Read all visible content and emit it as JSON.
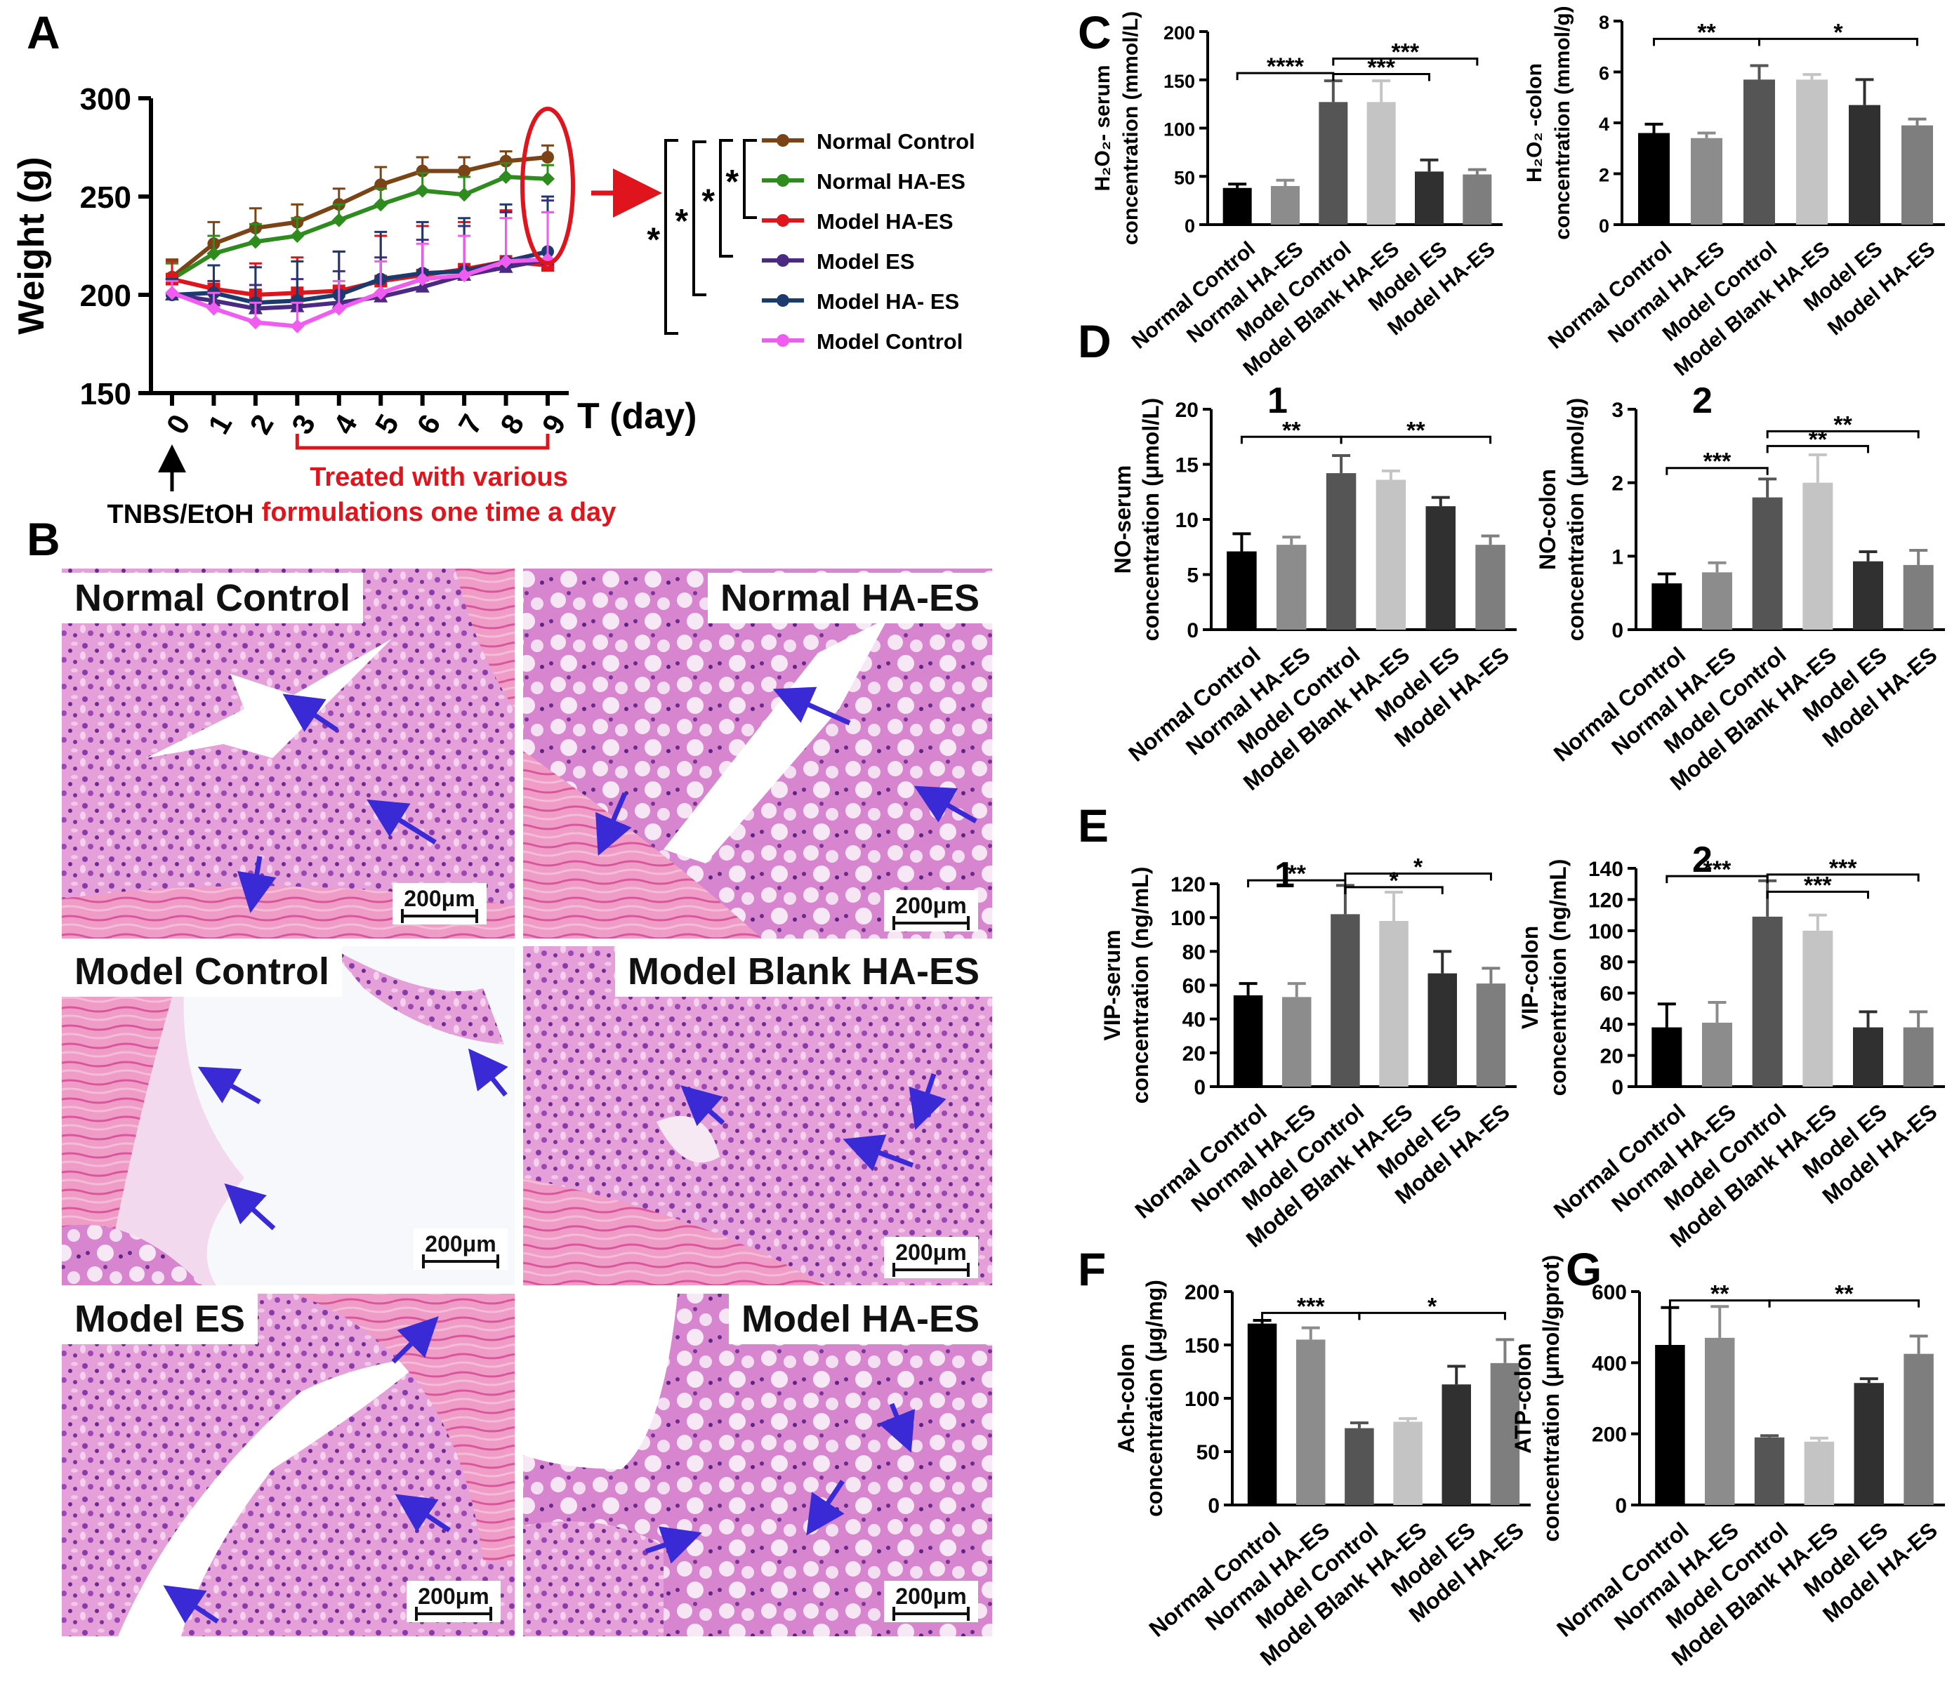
{
  "colors": {
    "normal_control": "#7a4416",
    "normal_haes": "#2e8b1e",
    "model_haes": "#e0141c",
    "model_es": "#4b2a84",
    "model_ha_es": "#1b3a6e",
    "model_control": "#f05cf0",
    "bars": [
      "#000000",
      "#8c8c8c",
      "#555555",
      "#c4c4c4",
      "#303030",
      "#7e7e7e"
    ],
    "arrow_red": "#e0141c",
    "arrow_blue": "#3a2ad6"
  },
  "panel_letters": [
    "A",
    "B",
    "C",
    "D",
    "E",
    "F",
    "G"
  ],
  "panelA": {
    "ylabel": "Weight (g)",
    "xlabel": "T (day)",
    "ylim": [
      150,
      300
    ],
    "yticks": [
      150,
      200,
      250,
      300
    ],
    "xticks": [
      0,
      1,
      2,
      3,
      4,
      5,
      6,
      7,
      8,
      9
    ],
    "annotation_treatment": "Treated with various\nformulations one time a day",
    "annotation_induction": "TNBS/EtOH",
    "sig_star": "*"
  },
  "chart_data": [
    {
      "id": "A",
      "type": "line",
      "title": "",
      "xlabel": "T (day)",
      "ylabel": "Weight (g)",
      "x": [
        0,
        1,
        2,
        3,
        4,
        5,
        6,
        7,
        8,
        9
      ],
      "ylim": [
        150,
        300
      ],
      "series": [
        {
          "name": "Normal Control",
          "values": [
            209,
            226,
            234,
            237,
            246,
            256,
            263,
            263,
            268,
            270
          ]
        },
        {
          "name": "Normal HA-ES",
          "values": [
            208,
            221,
            227,
            230,
            238,
            246,
            253,
            251,
            260,
            259
          ]
        },
        {
          "name": "Model HA-ES",
          "values": [
            208,
            203,
            200,
            201,
            202,
            207,
            210,
            213,
            217,
            215
          ]
        },
        {
          "name": "Model ES",
          "values": [
            200,
            197,
            193,
            194,
            196,
            199,
            204,
            210,
            214,
            218
          ]
        },
        {
          "name": "Model HA- ES",
          "values": [
            200,
            201,
            196,
            197,
            200,
            208,
            211,
            212,
            217,
            222
          ]
        },
        {
          "name": "Model Control",
          "values": [
            201,
            193,
            186,
            184,
            193,
            201,
            208,
            210,
            217,
            218
          ]
        }
      ],
      "errors": [
        [
          9,
          11,
          10,
          9,
          8,
          9,
          7,
          7,
          5,
          6
        ],
        [
          8,
          9,
          9,
          9,
          8,
          8,
          9,
          9,
          7,
          7
        ],
        [
          9,
          12,
          16,
          18,
          20,
          23,
          25,
          24,
          26,
          27
        ],
        [
          8,
          10,
          12,
          14,
          16,
          20,
          24,
          25,
          28,
          30
        ],
        [
          8,
          14,
          18,
          20,
          22,
          24,
          26,
          27,
          29,
          28
        ],
        [
          6,
          8,
          10,
          12,
          14,
          16,
          18,
          20,
          22,
          24
        ]
      ]
    },
    {
      "id": "C1",
      "type": "bar",
      "title": "",
      "ylabel": "H₂O₂- serum\nconcentration (mmol/L)",
      "categories": [
        "Normal Control",
        "Normal HA-ES",
        "Model Control",
        "Model Blank HA-ES",
        "Model ES",
        "Model HA-ES"
      ],
      "values": [
        38,
        40,
        127,
        127,
        55,
        52
      ],
      "errors": [
        4,
        6,
        22,
        22,
        12,
        5
      ],
      "ylim": [
        0,
        200
      ],
      "yticks": [
        0,
        50,
        100,
        150,
        200
      ],
      "sig": [
        {
          "from": 0,
          "to": 2,
          "y": 157,
          "label": "****"
        },
        {
          "from": 2,
          "to": 4,
          "y": 156,
          "label": "***"
        },
        {
          "from": 2,
          "to": 5,
          "y": 172,
          "label": "***"
        }
      ]
    },
    {
      "id": "C2",
      "type": "bar",
      "title": "",
      "ylabel": "H₂O₂ -colon\nconcentration (mmol/g)",
      "categories": [
        "Normal Control",
        "Normal HA-ES",
        "Model Control",
        "Model Blank HA-ES",
        "Model ES",
        "Model HA-ES"
      ],
      "values": [
        3.6,
        3.4,
        5.7,
        5.7,
        4.7,
        3.9
      ],
      "errors": [
        0.35,
        0.2,
        0.55,
        0.2,
        1.0,
        0.25
      ],
      "ylim": [
        0,
        8
      ],
      "yticks": [
        0,
        2,
        4,
        6,
        8
      ],
      "sig": [
        {
          "from": 0,
          "to": 2,
          "y": 7.3,
          "label": "**"
        },
        {
          "from": 2,
          "to": 5,
          "y": 7.3,
          "label": "*"
        }
      ]
    },
    {
      "id": "D1",
      "type": "bar",
      "title": "1",
      "ylabel": "NO-serum\nconcentration (μmol/L)",
      "categories": [
        "Normal Control",
        "Normal HA-ES",
        "Model Control",
        "Model Blank HA-ES",
        "Model ES",
        "Model HA-ES"
      ],
      "values": [
        7.1,
        7.7,
        14.2,
        13.6,
        11.2,
        7.7
      ],
      "errors": [
        1.6,
        0.7,
        1.6,
        0.8,
        0.8,
        0.8
      ],
      "ylim": [
        0,
        20
      ],
      "yticks": [
        0,
        5,
        10,
        15,
        20
      ],
      "sig": [
        {
          "from": 0,
          "to": 2,
          "y": 17.5,
          "label": "**"
        },
        {
          "from": 2,
          "to": 5,
          "y": 17.5,
          "label": "**"
        }
      ]
    },
    {
      "id": "D2",
      "type": "bar",
      "title": "2",
      "ylabel": "NO-colon\nconcentration (μmol/g)",
      "categories": [
        "Normal Control",
        "Normal HA-ES",
        "Model Control",
        "Model Blank HA-ES",
        "Model ES",
        "Model HA-ES"
      ],
      "values": [
        0.63,
        0.78,
        1.8,
        2.0,
        0.93,
        0.88
      ],
      "errors": [
        0.13,
        0.13,
        0.25,
        0.38,
        0.13,
        0.2
      ],
      "ylim": [
        0,
        3
      ],
      "yticks": [
        0,
        1,
        2,
        3
      ],
      "sig": [
        {
          "from": 0,
          "to": 2,
          "y": 2.2,
          "label": "***"
        },
        {
          "from": 2,
          "to": 4,
          "y": 2.5,
          "label": "**"
        },
        {
          "from": 2,
          "to": 5,
          "y": 2.7,
          "label": "**"
        }
      ]
    },
    {
      "id": "E1",
      "type": "bar",
      "title": "1",
      "ylabel": "VIP-serum\nconcentration (ng/mL)",
      "categories": [
        "Normal Control",
        "Normal HA-ES",
        "Model Control",
        "Model Blank HA-ES",
        "Model ES",
        "Model HA-ES"
      ],
      "values": [
        54,
        53,
        102,
        98,
        67,
        61
      ],
      "errors": [
        7,
        8,
        17,
        17,
        13,
        9
      ],
      "ylim": [
        0,
        120
      ],
      "yticks": [
        0,
        20,
        40,
        60,
        80,
        100,
        120
      ],
      "sig": [
        {
          "from": 0,
          "to": 2,
          "y": 122,
          "label": "**"
        },
        {
          "from": 2,
          "to": 4,
          "y": 118,
          "label": "*"
        },
        {
          "from": 2,
          "to": 5,
          "y": 126,
          "label": "*"
        }
      ]
    },
    {
      "id": "E2",
      "type": "bar",
      "title": "2",
      "ylabel": "VIP-colon\nconcentration (ng/mL)",
      "categories": [
        "Normal Control",
        "Normal HA-ES",
        "Model Control",
        "Model Blank HA-ES",
        "Model ES",
        "Model HA-ES"
      ],
      "values": [
        38,
        41,
        109,
        100,
        38,
        38
      ],
      "errors": [
        15,
        13,
        23,
        10,
        10,
        10
      ],
      "ylim": [
        0,
        140
      ],
      "yticks": [
        0,
        20,
        40,
        60,
        80,
        100,
        120,
        140
      ],
      "sig": [
        {
          "from": 0,
          "to": 2,
          "y": 135,
          "label": "***"
        },
        {
          "from": 2,
          "to": 4,
          "y": 125,
          "label": "***"
        },
        {
          "from": 2,
          "to": 5,
          "y": 136,
          "label": "***"
        }
      ]
    },
    {
      "id": "F",
      "type": "bar",
      "title": "",
      "ylabel": "Ach-colon\nconcentration (μg/mg)",
      "categories": [
        "Normal Control",
        "Normal HA-ES",
        "Model Control",
        "Model Blank HA-ES",
        "Model ES",
        "Model HA-ES"
      ],
      "values": [
        170,
        155,
        72,
        78,
        113,
        133
      ],
      "errors": [
        3,
        11,
        5,
        3,
        17,
        22
      ],
      "ylim": [
        0,
        200
      ],
      "yticks": [
        0,
        50,
        100,
        150,
        200
      ],
      "sig": [
        {
          "from": 0,
          "to": 2,
          "y": 180,
          "label": "***"
        },
        {
          "from": 2,
          "to": 5,
          "y": 180,
          "label": "*"
        }
      ]
    },
    {
      "id": "G",
      "type": "bar",
      "title": "",
      "ylabel": "ATP-colon\nconcentration (μmol/gprot)",
      "categories": [
        "Normal Control",
        "Normal HA-ES",
        "Model Control",
        "Model Blank HA-ES",
        "Model ES",
        "Model HA-ES"
      ],
      "values": [
        450,
        470,
        190,
        178,
        343,
        425
      ],
      "errors": [
        105,
        88,
        5,
        10,
        12,
        50
      ],
      "ylim": [
        0,
        600
      ],
      "yticks": [
        0,
        200,
        400,
        600
      ],
      "sig": [
        {
          "from": 0,
          "to": 2,
          "y": 575,
          "label": "**"
        },
        {
          "from": 2,
          "to": 5,
          "y": 575,
          "label": "**"
        }
      ]
    }
  ],
  "histology": [
    {
      "label": "Normal Control",
      "scale": "200μm"
    },
    {
      "label": "Normal HA-ES",
      "scale": "200μm"
    },
    {
      "label": "Model Control",
      "scale": "200μm"
    },
    {
      "label": "Model Blank HA-ES",
      "scale": "200μm"
    },
    {
      "label": "Model ES",
      "scale": "200μm"
    },
    {
      "label": "Model HA-ES",
      "scale": "200μm"
    }
  ]
}
